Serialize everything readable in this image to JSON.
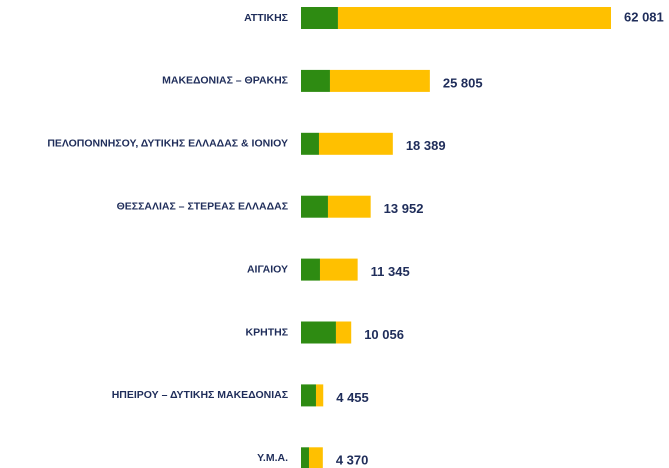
{
  "chart_data": {
    "type": "hbar-stacked",
    "categories": [
      "ΑΤΤΙΚΗΣ",
      "ΜΑΚΕΔΟΝΙΑΣ – ΘΡΑΚΗΣ",
      "ΠΕΛΟΠΟΝΝΗΣΟΥ, ΔΥΤΙΚΗΣ ΕΛΛΑΔΑΣ & ΙΟΝΙΟΥ",
      "ΘΕΣΣΑΛΙΑΣ – ΣΤΕΡΕΑΣ ΕΛΛΑΔΑΣ",
      "ΑΙΓΑΙΟΥ",
      "ΚΡΗΤΗΣ",
      "ΗΠΕΙΡΟΥ – ΔΥΤΙΚΗΣ ΜΑΚΕΔΟΝΙΑΣ",
      "Υ.Μ.Α."
    ],
    "series": [
      {
        "color": "#2e8b12",
        "values": [
          7400,
          5800,
          3600,
          5400,
          3800,
          7000,
          3000,
          1600
        ]
      },
      {
        "color": "#ffc000",
        "values": [
          54681,
          20005,
          14789,
          8552,
          7545,
          3056,
          1455,
          2770
        ]
      }
    ],
    "totals": [
      62081,
      25805,
      18389,
      13952,
      11345,
      10056,
      4455,
      4370
    ],
    "total_labels": [
      "62 081",
      "25 805",
      "18 389",
      "13 952",
      "11 345",
      "10 056",
      "4 455",
      "4 370"
    ]
  }
}
